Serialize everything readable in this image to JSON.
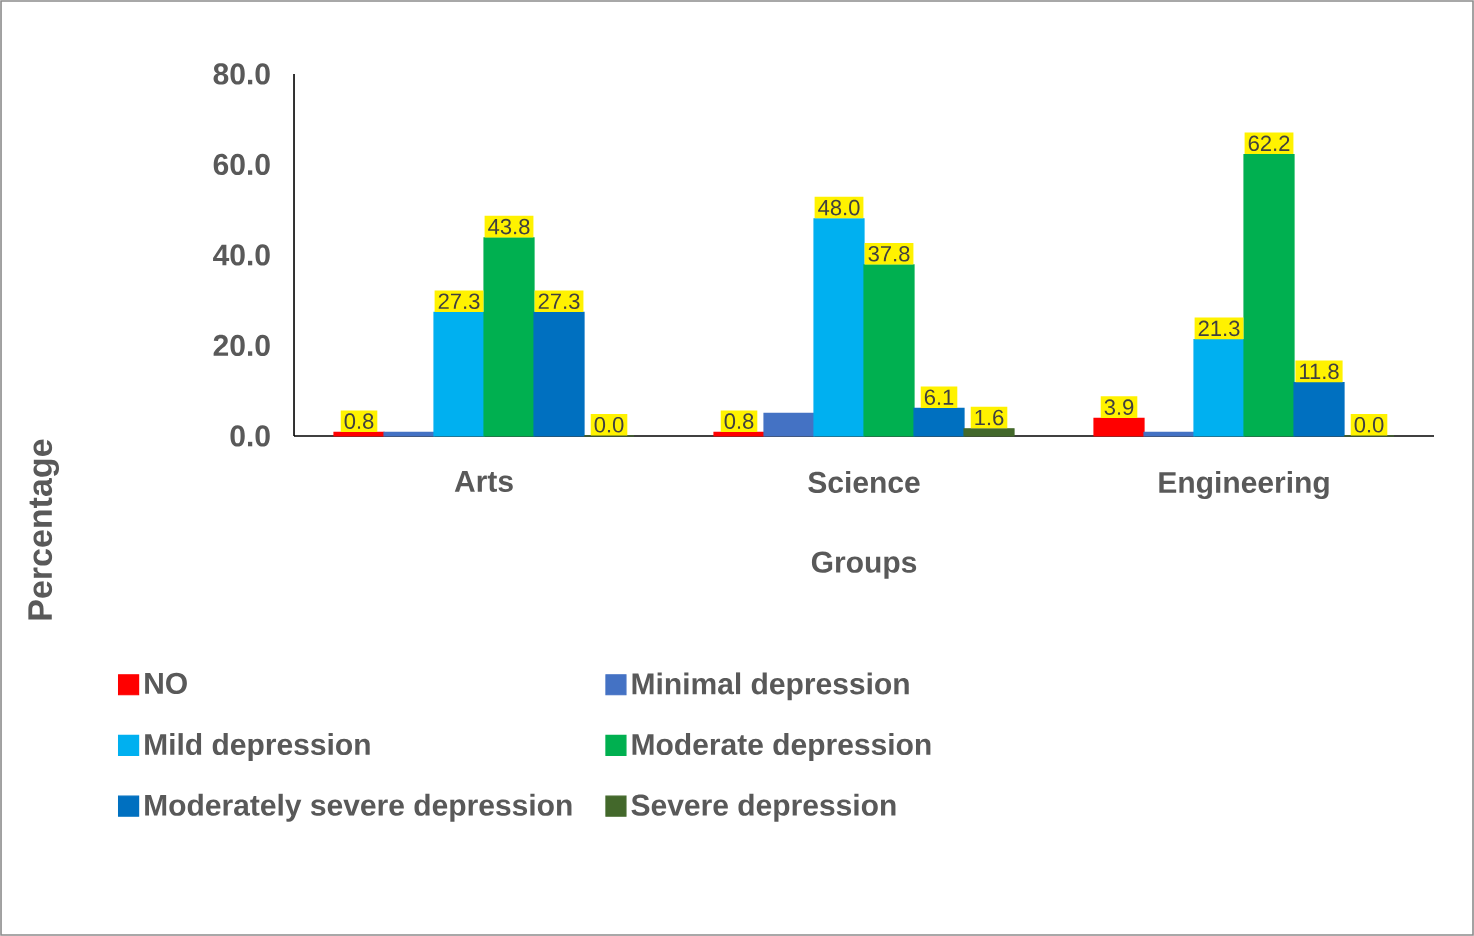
{
  "chart_data": {
    "type": "bar",
    "xlabel": "Groups",
    "ylabel": "Percentage",
    "categories": [
      "Arts",
      "Science",
      "Engineering"
    ],
    "series": [
      {
        "name": "NO",
        "color": "#ff0000",
        "values": [
          0.8,
          0.8,
          3.9
        ],
        "value_labels": [
          "0.8",
          "0.8",
          "3.9"
        ]
      },
      {
        "name": "Minimal depression",
        "color": "#4472c4",
        "values": [
          0.8,
          5.0,
          0.8
        ],
        "value_labels": [
          null,
          null,
          null
        ]
      },
      {
        "name": "Mild depression",
        "color": "#00b0f0",
        "values": [
          27.3,
          48.0,
          21.3
        ],
        "value_labels": [
          "27.3",
          "48.0",
          "21.3"
        ]
      },
      {
        "name": "Moderate depression",
        "color": "#00b050",
        "values": [
          43.8,
          37.8,
          62.2
        ],
        "value_labels": [
          "43.8",
          "37.8",
          "62.2"
        ]
      },
      {
        "name": "Moderately severe depression",
        "color": "#0070c0",
        "values": [
          27.3,
          6.1,
          11.8
        ],
        "value_labels": [
          "27.3",
          "6.1",
          "11.8"
        ]
      },
      {
        "name": "Severe depression",
        "color": "#43682b",
        "values": [
          0.0,
          1.6,
          0.0
        ],
        "value_labels": [
          "0.0",
          "1.6",
          "0.0"
        ]
      }
    ],
    "ylim": [
      0,
      80
    ],
    "yticks": [
      {
        "value": 0,
        "label": "0.0"
      },
      {
        "value": 20,
        "label": "20.0"
      },
      {
        "value": 40,
        "label": "40.0"
      },
      {
        "value": 60,
        "label": "60.0"
      },
      {
        "value": 80,
        "label": "80.0"
      }
    ],
    "legend": "bottom"
  }
}
